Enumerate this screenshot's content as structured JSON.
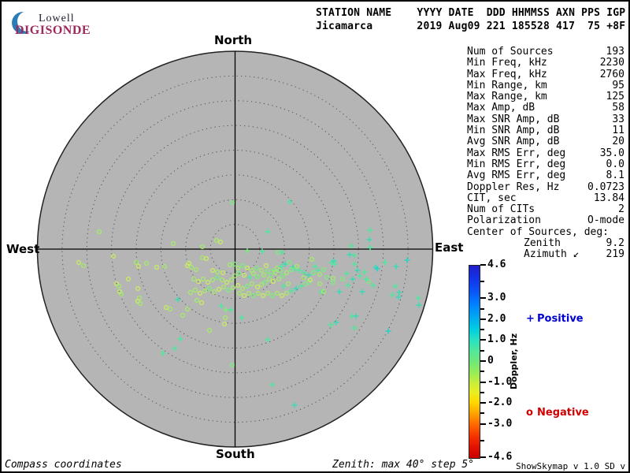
{
  "logo": {
    "line1": "Lowell",
    "line2": "DIGISONDE",
    "crescent_color": "#2b7db8"
  },
  "header": {
    "line1": "STATION NAME    YYYY DATE  DDD HHMMSS AXN PPS IGP",
    "line2": "Jicamarca       2019 Aug09 221 185528 417  75 +8F"
  },
  "compass": {
    "north": "North",
    "south": "South",
    "west": "West",
    "east": "East"
  },
  "stats": {
    "rows": [
      {
        "label": "Num of Sources",
        "value": "193"
      },
      {
        "label": "Min Freq, kHz",
        "value": "2230"
      },
      {
        "label": "Max Freq, kHz",
        "value": "2760"
      },
      {
        "label": "Min Range, km",
        "value": "95"
      },
      {
        "label": "Max Range, km",
        "value": "125"
      },
      {
        "label": "Max Amp, dB",
        "value": "58"
      },
      {
        "label": "Max SNR Amp, dB",
        "value": "33"
      },
      {
        "label": "Min SNR Amp, dB",
        "value": "11"
      },
      {
        "label": "Avg SNR Amp, dB",
        "value": "20"
      },
      {
        "label": "Max RMS Err, deg",
        "value": "35.0"
      },
      {
        "label": "Min RMS Err, deg",
        "value": "0.0"
      },
      {
        "label": "Avg RMS Err, deg",
        "value": "8.1"
      },
      {
        "label": "Doppler Res, Hz",
        "value": "0.0723"
      },
      {
        "label": "CIT, sec",
        "value": "13.84"
      },
      {
        "label": "Num of CITs",
        "value": "2"
      },
      {
        "label": "Polarization",
        "value": "O-mode"
      },
      {
        "label": "Center of Sources, deg:",
        "value": ""
      },
      {
        "label": "Zenith",
        "value": "9.2",
        "indent": true
      },
      {
        "label": "Azimuth ↙",
        "value": "219",
        "indent": true
      }
    ]
  },
  "colorbar": {
    "title": "Doppler, Hz",
    "major_ticks": [
      {
        "v": 4.6,
        "label": "4.6"
      },
      {
        "v": 3.0,
        "label": "3.0"
      },
      {
        "v": 2.0,
        "label": "2.0"
      },
      {
        "v": 1.0,
        "label": "1.0"
      },
      {
        "v": 0,
        "label": "0"
      },
      {
        "v": -1.0,
        "label": "-1.0"
      },
      {
        "v": -2.0,
        "label": "-2.0"
      },
      {
        "v": -3.0,
        "label": "-3.0"
      },
      {
        "v": -4.6,
        "label": "-4.6"
      }
    ],
    "minor_ticks": [
      3.8,
      2.5,
      1.5,
      0.5,
      -0.5,
      -1.5,
      -2.5,
      -3.8
    ],
    "gradient": [
      "#2020c8 0%",
      "#1530e8 6%",
      "#0a52f5 13%",
      "#0080ff 20%",
      "#00aaf0 27%",
      "#00cfe0 33%",
      "#2ae2c0 39%",
      "#55e896 45%",
      "#70e878 50%",
      "#9aec55 56%",
      "#c8ee3a 61%",
      "#eaee20 66%",
      "#ffd900 71%",
      "#ffa100 77%",
      "#ff6400 83%",
      "#f53000 89%",
      "#e00f00 95%",
      "#c80000 100%"
    ]
  },
  "legend": {
    "positive": {
      "marker": "+",
      "label": "Positive",
      "color": "#0000d0"
    },
    "negative": {
      "marker": "o",
      "label": "Negative",
      "color": "#d00000"
    }
  },
  "footer": {
    "left": "Compass coordinates",
    "center": "Zenith: max 40°  step 5°",
    "right": "ShowSkymap v 1.0  SD v 4.2"
  },
  "chart_data": {
    "type": "scatter",
    "title": "Digisonde directional skymap, Jicamarca 2019 Aug09 221 185528",
    "projection": "polar-compass",
    "zenith_max_deg": 40,
    "zenith_step_deg": 5,
    "disk_fill": "#b5b5b5",
    "colorbar": {
      "label": "Doppler, Hz",
      "min": -4.6,
      "max": 4.6
    },
    "marker_legend": {
      "p": "Positive Doppler (+)",
      "o": "Negative Doppler (o)"
    },
    "marker_palette": [
      "#c9ea67",
      "#a5e96e",
      "#7eea82",
      "#54e59e",
      "#3fd9b4",
      "#2fd0c4"
    ],
    "points": [
      [
        124,
        292,
        "o",
        1
      ],
      [
        218,
        307,
        "o",
        1
      ],
      [
        293,
        255,
        "o",
        2
      ],
      [
        366,
        254,
        "p",
        3
      ],
      [
        338,
        292,
        "p",
        3
      ],
      [
        468,
        290,
        "p",
        3
      ],
      [
        467,
        302,
        "p",
        4
      ],
      [
        273,
        303,
        "o",
        1
      ],
      [
        278,
        305,
        "o",
        0
      ],
      [
        255,
        311,
        "o",
        1
      ],
      [
        312,
        316,
        "p",
        2
      ],
      [
        331,
        317,
        "p",
        3
      ],
      [
        351,
        318,
        "o",
        2
      ],
      [
        356,
        318,
        "p",
        3
      ],
      [
        444,
        310,
        "p",
        3
      ],
      [
        442,
        321,
        "p",
        4
      ],
      [
        468,
        312,
        "p",
        3
      ],
      [
        98,
        331,
        "o",
        0
      ],
      [
        104,
        335,
        "o",
        1
      ],
      [
        142,
        323,
        "o",
        0
      ],
      [
        171,
        331,
        "o",
        1
      ],
      [
        174,
        336,
        "o",
        0
      ],
      [
        184,
        332,
        "o",
        1
      ],
      [
        197,
        337,
        "o",
        0
      ],
      [
        207,
        336,
        "o",
        1
      ],
      [
        236,
        335,
        "o",
        0
      ],
      [
        241,
        337,
        "o",
        1
      ],
      [
        146,
        358,
        "o",
        0
      ],
      [
        149,
        361,
        "o",
        1
      ],
      [
        150,
        368,
        "o",
        0
      ],
      [
        152,
        371,
        "o",
        1
      ],
      [
        173,
        364,
        "o",
        0
      ],
      [
        175,
        376,
        "o",
        1
      ],
      [
        173,
        380,
        "o",
        0
      ],
      [
        176,
        383,
        "o",
        1
      ],
      [
        209,
        388,
        "o",
        0
      ],
      [
        214,
        390,
        "o",
        1
      ],
      [
        224,
        378,
        "p",
        4
      ],
      [
        236,
        390,
        "o",
        1
      ],
      [
        227,
        428,
        "p",
        3
      ],
      [
        220,
        440,
        "p",
        3
      ],
      [
        205,
        446,
        "p",
        3
      ],
      [
        161,
        352,
        "o",
        0
      ],
      [
        255,
        325,
        "o",
        1
      ],
      [
        260,
        326,
        "o",
        0
      ],
      [
        290,
        334,
        "o",
        1
      ],
      [
        296,
        333,
        "o",
        2
      ],
      [
        238,
        332,
        "o",
        0
      ],
      [
        247,
        340,
        "o",
        1
      ],
      [
        268,
        341,
        "o",
        0
      ],
      [
        274,
        343,
        "o",
        1
      ],
      [
        281,
        344,
        "o",
        0
      ],
      [
        296,
        348,
        "o",
        1
      ],
      [
        301,
        345,
        "o",
        2
      ],
      [
        308,
        347,
        "o",
        0
      ],
      [
        315,
        350,
        "p",
        3
      ],
      [
        320,
        345,
        "o",
        1
      ],
      [
        325,
        349,
        "o",
        2
      ],
      [
        333,
        347,
        "o",
        1
      ],
      [
        338,
        342,
        "o",
        2
      ],
      [
        345,
        341,
        "p",
        2
      ],
      [
        350,
        338,
        "o",
        1
      ],
      [
        355,
        336,
        "p",
        3
      ],
      [
        360,
        333,
        "p",
        4
      ],
      [
        365,
        331,
        "o",
        2
      ],
      [
        370,
        337,
        "p",
        4
      ],
      [
        372,
        339,
        "p",
        3
      ],
      [
        368,
        340,
        "o",
        2
      ],
      [
        375,
        336,
        "o",
        1
      ],
      [
        378,
        341,
        "p",
        3
      ],
      [
        362,
        344,
        "o",
        1
      ],
      [
        357,
        348,
        "o",
        2
      ],
      [
        352,
        352,
        "o",
        1
      ],
      [
        345,
        355,
        "o",
        0
      ],
      [
        340,
        352,
        "o",
        1
      ],
      [
        335,
        356,
        "o",
        2
      ],
      [
        330,
        359,
        "o",
        1
      ],
      [
        325,
        362,
        "o",
        0
      ],
      [
        318,
        358,
        "o",
        1
      ],
      [
        312,
        361,
        "o",
        2
      ],
      [
        306,
        364,
        "o",
        1
      ],
      [
        300,
        360,
        "o",
        0
      ],
      [
        294,
        363,
        "o",
        1
      ],
      [
        288,
        366,
        "o",
        2
      ],
      [
        282,
        362,
        "o",
        1
      ],
      [
        276,
        365,
        "o",
        0
      ],
      [
        270,
        368,
        "o",
        1
      ],
      [
        264,
        364,
        "o",
        2
      ],
      [
        258,
        367,
        "o",
        1
      ],
      [
        252,
        370,
        "o",
        0
      ],
      [
        246,
        366,
        "o",
        1
      ],
      [
        240,
        369,
        "o",
        1
      ],
      [
        262,
        356,
        "o",
        0
      ],
      [
        268,
        353,
        "o",
        1
      ],
      [
        274,
        350,
        "o",
        2
      ],
      [
        280,
        353,
        "o",
        1
      ],
      [
        286,
        356,
        "o",
        0
      ],
      [
        292,
        353,
        "o",
        1
      ],
      [
        244,
        352,
        "o",
        1
      ],
      [
        250,
        355,
        "o",
        0
      ],
      [
        256,
        352,
        "o",
        1
      ],
      [
        302,
        370,
        "o",
        1
      ],
      [
        308,
        373,
        "o",
        0
      ],
      [
        314,
        370,
        "o",
        1
      ],
      [
        320,
        373,
        "o",
        2
      ],
      [
        326,
        370,
        "o",
        1
      ],
      [
        332,
        373,
        "o",
        0
      ],
      [
        338,
        370,
        "o",
        1
      ],
      [
        344,
        373,
        "o",
        2
      ],
      [
        350,
        370,
        "o",
        1
      ],
      [
        356,
        373,
        "o",
        0
      ],
      [
        362,
        370,
        "o",
        1
      ],
      [
        368,
        367,
        "p",
        3
      ],
      [
        374,
        364,
        "p",
        4
      ],
      [
        380,
        361,
        "p",
        3
      ],
      [
        386,
        358,
        "o",
        2
      ],
      [
        358,
        361,
        "p",
        3
      ],
      [
        364,
        358,
        "o",
        1
      ],
      [
        300,
        338,
        "o",
        1
      ],
      [
        306,
        335,
        "o",
        2
      ],
      [
        312,
        338,
        "o",
        0
      ],
      [
        318,
        341,
        "o",
        1
      ],
      [
        324,
        338,
        "o",
        2
      ],
      [
        330,
        341,
        "o",
        1
      ],
      [
        336,
        335,
        "o",
        0
      ],
      [
        342,
        347,
        "o",
        2
      ],
      [
        348,
        344,
        "o",
        1
      ],
      [
        354,
        341,
        "o",
        2
      ],
      [
        384,
        344,
        "p",
        3
      ],
      [
        390,
        347,
        "p",
        4
      ],
      [
        396,
        344,
        "o",
        2
      ],
      [
        384,
        350,
        "o",
        1
      ],
      [
        390,
        356,
        "o",
        2
      ],
      [
        398,
        336,
        "p",
        3
      ],
      [
        394,
        327,
        "o",
        1
      ],
      [
        419,
        331,
        "p",
        3
      ],
      [
        422,
        329,
        "p",
        4
      ],
      [
        423,
        333,
        "p",
        3
      ],
      [
        402,
        341,
        "p",
        3
      ],
      [
        409,
        340,
        "o",
        2
      ],
      [
        404,
        346,
        "o",
        1
      ],
      [
        413,
        350,
        "o",
        2
      ],
      [
        421,
        351,
        "o",
        1
      ],
      [
        392,
        353,
        "o",
        0
      ],
      [
        404,
        358,
        "o",
        1
      ],
      [
        421,
        356,
        "o",
        2
      ],
      [
        406,
        368,
        "p",
        3
      ],
      [
        409,
        368,
        "o",
        1
      ],
      [
        429,
        368,
        "p",
        4
      ],
      [
        448,
        333,
        "p",
        3
      ],
      [
        452,
        341,
        "p",
        4
      ],
      [
        461,
        343,
        "p",
        3
      ],
      [
        475,
        337,
        "p",
        4
      ],
      [
        477,
        339,
        "p",
        5
      ],
      [
        487,
        331,
        "p",
        3
      ],
      [
        501,
        336,
        "p",
        4
      ],
      [
        515,
        328,
        "p",
        5
      ],
      [
        500,
        361,
        "p",
        3
      ],
      [
        505,
        369,
        "p",
        4
      ],
      [
        496,
        372,
        "p",
        3
      ],
      [
        504,
        375,
        "p",
        4
      ],
      [
        529,
        376,
        "p",
        3
      ],
      [
        530,
        385,
        "p",
        4
      ],
      [
        448,
        322,
        "p",
        3
      ],
      [
        445,
        399,
        "p",
        3
      ],
      [
        450,
        399,
        "p",
        4
      ],
      [
        418,
        410,
        "p",
        3
      ],
      [
        425,
        407,
        "p",
        4
      ],
      [
        448,
        414,
        "p",
        3
      ],
      [
        491,
        418,
        "p",
        5
      ],
      [
        466,
        355,
        "o",
        2
      ],
      [
        472,
        360,
        "p",
        3
      ],
      [
        458,
        368,
        "p",
        4
      ],
      [
        438,
        345,
        "p",
        3
      ],
      [
        433,
        352,
        "o",
        2
      ],
      [
        440,
        360,
        "p",
        3
      ],
      [
        446,
        352,
        "p",
        4
      ],
      [
        455,
        348,
        "p",
        3
      ],
      [
        463,
        352,
        "p",
        3
      ],
      [
        279,
        386,
        "p",
        3
      ],
      [
        285,
        391,
        "p",
        2
      ],
      [
        291,
        391,
        "p",
        3
      ],
      [
        305,
        401,
        "p",
        3
      ],
      [
        284,
        401,
        "o",
        1
      ],
      [
        283,
        409,
        "o",
        0
      ],
      [
        264,
        417,
        "o",
        1
      ],
      [
        293,
        461,
        "o",
        2
      ],
      [
        338,
        429,
        "p",
        3
      ],
      [
        344,
        486,
        "p",
        3
      ],
      [
        372,
        512,
        "p",
        4
      ],
      [
        248,
        379,
        "o",
        1
      ],
      [
        254,
        382,
        "o",
        0
      ],
      [
        230,
        398,
        "o",
        1
      ]
    ]
  }
}
